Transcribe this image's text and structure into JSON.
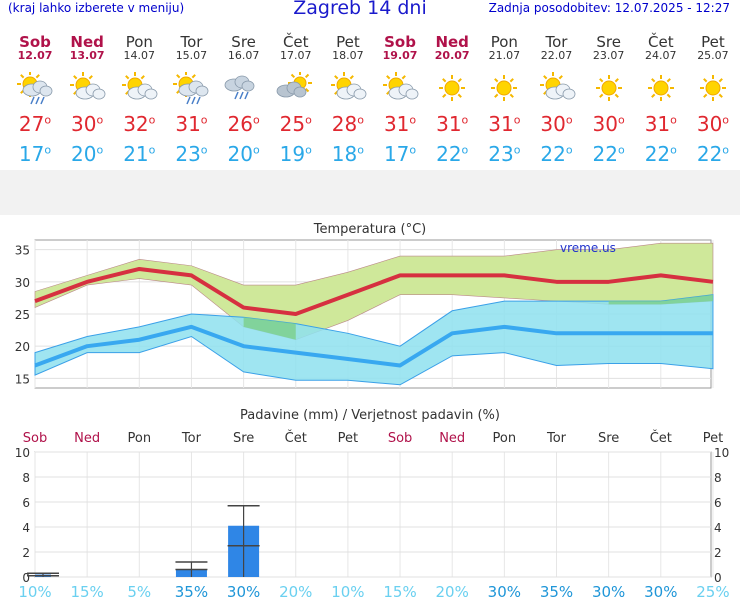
{
  "header": {
    "left_note": "(kraj lahko izberete v meniju)",
    "title": "Zagreb 14 dni",
    "updated": "Zadnja posodobitev: 12.07.2025 - 12:27"
  },
  "days": [
    {
      "name": "Sob",
      "date": "12.07",
      "weekend": true,
      "icon": "sun-cloud-rain-icon",
      "max": "27",
      "min": "17"
    },
    {
      "name": "Ned",
      "date": "13.07",
      "weekend": true,
      "icon": "sun-cloud-icon",
      "max": "30",
      "min": "20"
    },
    {
      "name": "Pon",
      "date": "14.07",
      "weekend": false,
      "icon": "sun-cloud-icon",
      "max": "32",
      "min": "21"
    },
    {
      "name": "Tor",
      "date": "15.07",
      "weekend": false,
      "icon": "sun-cloud-rain-icon",
      "max": "31",
      "min": "23"
    },
    {
      "name": "Sre",
      "date": "16.07",
      "weekend": false,
      "icon": "cloud-rain-icon",
      "max": "26",
      "min": "20"
    },
    {
      "name": "Čet",
      "date": "17.07",
      "weekend": false,
      "icon": "cloud-sun-icon",
      "max": "25",
      "min": "19"
    },
    {
      "name": "Pet",
      "date": "18.07",
      "weekend": false,
      "icon": "sun-cloud-icon",
      "max": "28",
      "min": "18"
    },
    {
      "name": "Sob",
      "date": "19.07",
      "weekend": true,
      "icon": "sun-cloud-icon",
      "max": "31",
      "min": "17"
    },
    {
      "name": "Ned",
      "date": "20.07",
      "weekend": true,
      "icon": "sun-icon",
      "max": "31",
      "min": "22"
    },
    {
      "name": "Pon",
      "date": "21.07",
      "weekend": false,
      "icon": "sun-icon",
      "max": "31",
      "min": "23"
    },
    {
      "name": "Tor",
      "date": "22.07",
      "weekend": false,
      "icon": "sun-cloud-icon",
      "max": "30",
      "min": "22"
    },
    {
      "name": "Sre",
      "date": "23.07",
      "weekend": false,
      "icon": "sun-icon",
      "max": "30",
      "min": "22"
    },
    {
      "name": "Čet",
      "date": "24.07",
      "weekend": false,
      "icon": "sun-icon",
      "max": "31",
      "min": "22"
    },
    {
      "name": "Pet",
      "date": "25.07",
      "weekend": false,
      "icon": "sun-icon",
      "max": "30",
      "min": "22"
    }
  ],
  "colors": {
    "max": "#e02830",
    "min": "#2aa8e8",
    "weekend": "#b0124a",
    "max_line": "#d63040",
    "min_line": "#38a8f0",
    "max_band": "#cfe89a",
    "min_band": "#8ee0ef",
    "overlap": "#7cd08a",
    "bar": "#2f86e6",
    "prob": "#6ad0f0",
    "prob_strong": "#1f96d8"
  },
  "chart_data": [
    {
      "type": "line",
      "title": "Temperatura (°C)",
      "watermark": "vreme.us",
      "ylim": [
        13.5,
        36.5
      ],
      "yticks": [
        15,
        20,
        25,
        30,
        35
      ],
      "grid": true,
      "x_count": 14,
      "series": [
        {
          "key": "max",
          "values": [
            27,
            30,
            32,
            31,
            26,
            25,
            28,
            31,
            31,
            31,
            30,
            30,
            31,
            30
          ]
        },
        {
          "key": "min",
          "values": [
            17,
            20,
            21,
            23,
            20,
            19,
            18,
            17,
            22,
            23,
            22,
            22,
            22,
            22
          ]
        }
      ],
      "bands": [
        {
          "key": "max_band",
          "upper": [
            28.5,
            31,
            33.5,
            32.5,
            29.5,
            29.5,
            31.5,
            34,
            34,
            34,
            35,
            35,
            36,
            36
          ],
          "lower": [
            26,
            29.5,
            30.5,
            29.5,
            23,
            21,
            24,
            28,
            28,
            27.5,
            27,
            26.5,
            26.5,
            27
          ]
        },
        {
          "key": "min_band",
          "upper": [
            19,
            21.5,
            23,
            25,
            24.5,
            23.5,
            22,
            20,
            25.5,
            27,
            27,
            27,
            27,
            28
          ],
          "lower": [
            15.5,
            19,
            19,
            21.5,
            16,
            14.7,
            14.7,
            14,
            18.5,
            19,
            17,
            17.3,
            17.3,
            16.5
          ]
        }
      ]
    },
    {
      "type": "bar",
      "title": "Padavine (mm) / Verjetnost padavin (%)",
      "ylim": [
        0,
        10
      ],
      "yticks": [
        0,
        2,
        4,
        6,
        8,
        10
      ],
      "grid": true,
      "values": [
        0.2,
        0,
        0,
        0.6,
        4.1,
        0,
        0,
        0,
        0,
        0,
        0,
        0,
        0,
        0
      ],
      "error_high": [
        0.3,
        0,
        0,
        1.2,
        5.7,
        0,
        0,
        0,
        0,
        0,
        0,
        0,
        0,
        0
      ],
      "error_mid": [
        0.1,
        0,
        0,
        0.6,
        2.5,
        0,
        0,
        0,
        0,
        0,
        0,
        0,
        0,
        0
      ],
      "probability": [
        "10%",
        "15%",
        "5%",
        "35%",
        "30%",
        "20%",
        "10%",
        "15%",
        "20%",
        "30%",
        "35%",
        "30%",
        "30%",
        "25%"
      ]
    }
  ]
}
